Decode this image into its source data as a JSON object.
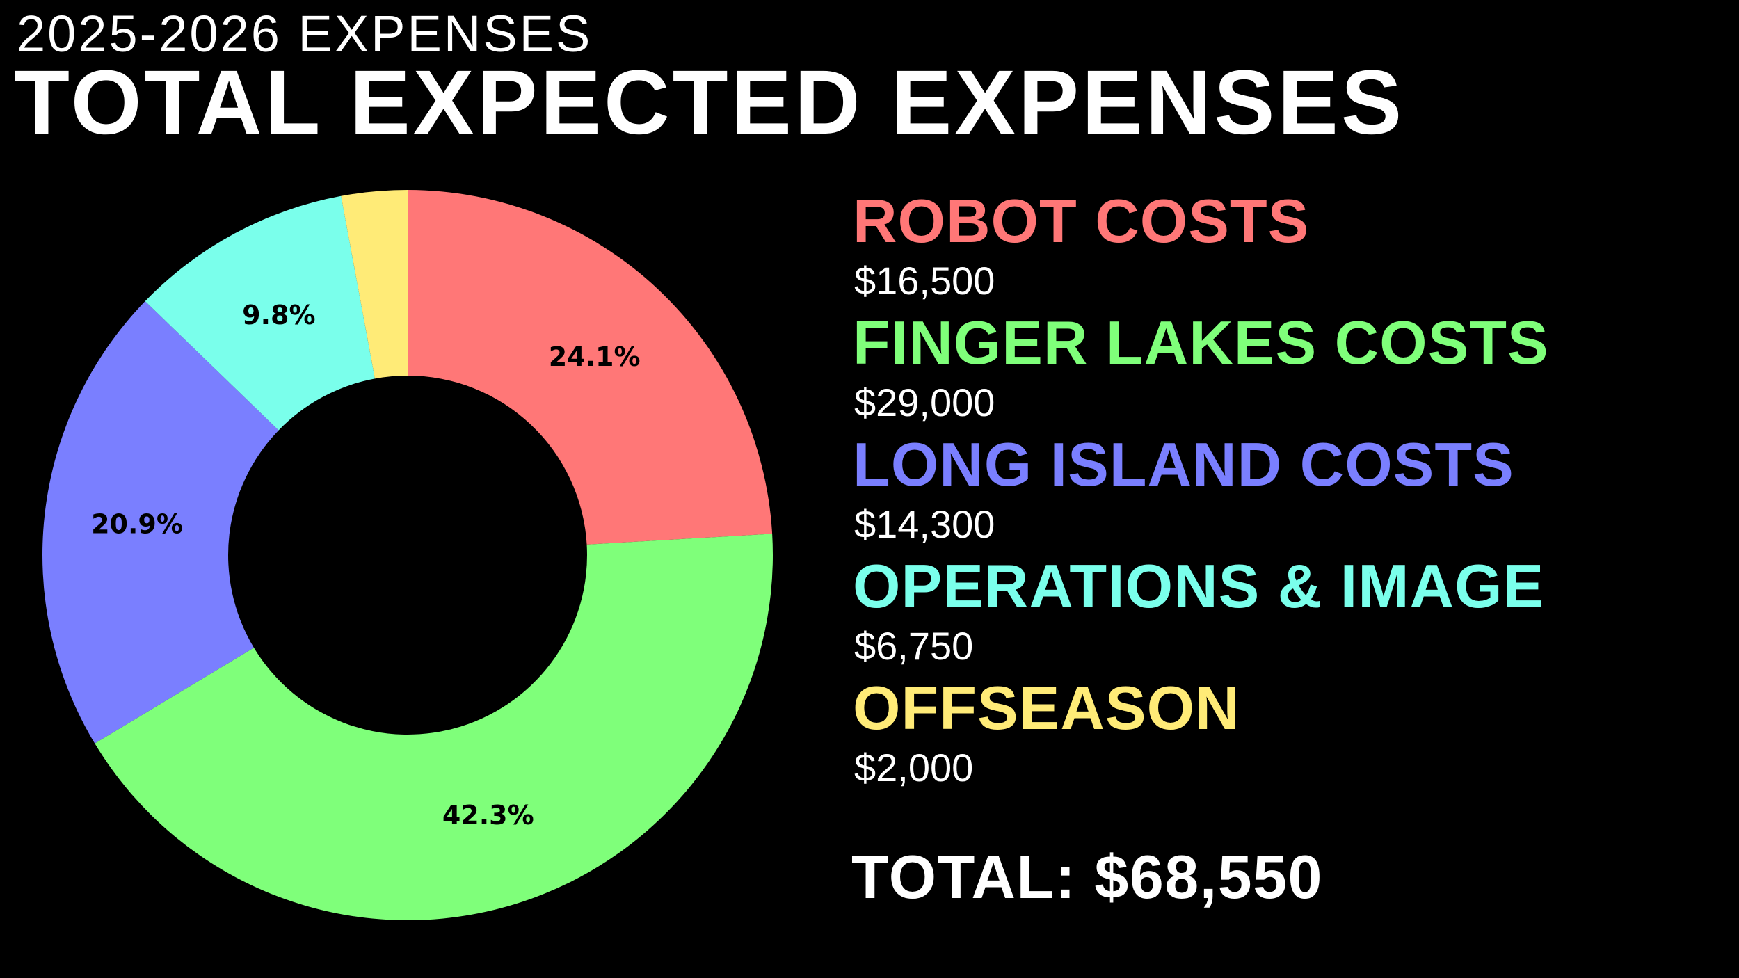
{
  "header": {
    "subtitle": "2025-2026 EXPENSES",
    "title": "TOTAL EXPECTED EXPENSES"
  },
  "legend": {
    "items": [
      {
        "label": "ROBOT COSTS",
        "value": "$16,500",
        "color": "#FF7777"
      },
      {
        "label": "FINGER LAKES COSTS",
        "value": "$29,000",
        "color": "#7FFF7A"
      },
      {
        "label": "LONG ISLAND COSTS",
        "value": "$14,300",
        "color": "#7A7FFF"
      },
      {
        "label": "OPERATIONS & IMAGE",
        "value": "$6,750",
        "color": "#7AFFEB"
      },
      {
        "label": "OFFSEASON",
        "value": "$2,000",
        "color": "#FFEB77"
      }
    ],
    "total": "TOTAL: $68,550"
  },
  "chart_data": {
    "type": "pie",
    "subtype": "donut",
    "title": "TOTAL EXPECTED EXPENSES",
    "subtitle": "2025-2026 EXPENSES",
    "categories": [
      "ROBOT COSTS",
      "FINGER LAKES COSTS",
      "LONG ISLAND COSTS",
      "OPERATIONS & IMAGE",
      "OFFSEASON"
    ],
    "values": [
      16500,
      29000,
      14300,
      6750,
      2000
    ],
    "percent_labels": [
      "24.1%",
      "42.3%",
      "20.9%",
      "9.8%",
      ""
    ],
    "colors": [
      "#FF7777",
      "#7FFF7A",
      "#7A7FFF",
      "#7AFFEB",
      "#FFEB77"
    ],
    "total": 68550,
    "start_angle": "top (12 o'clock)",
    "direction": "clockwise",
    "legend_position": "right"
  }
}
